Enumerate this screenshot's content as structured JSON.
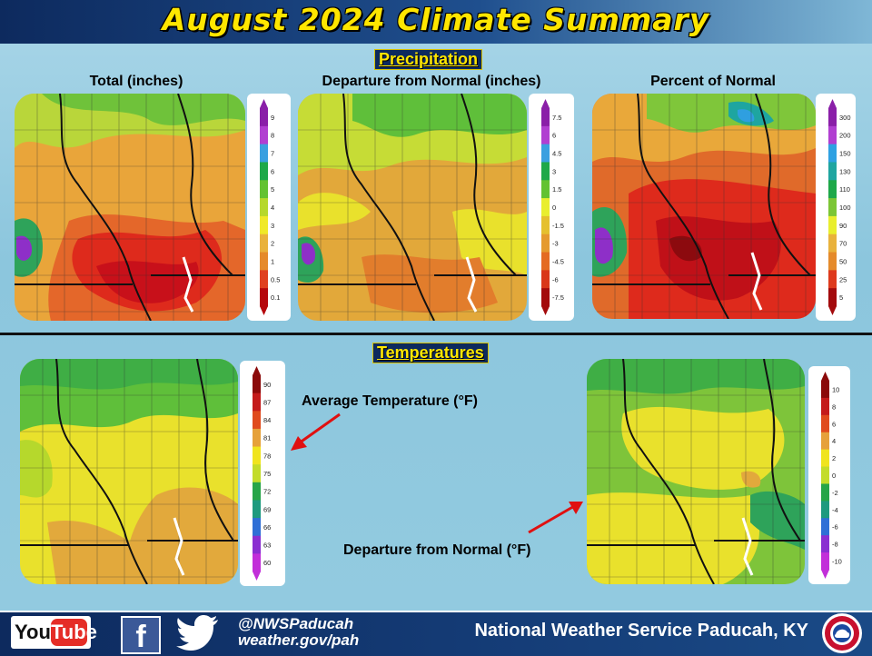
{
  "header": {
    "title": "August 2024 Climate Summary"
  },
  "precipitation": {
    "section_title": "Precipitation",
    "total": {
      "label": "Total (inches)",
      "legend": [
        "9",
        "8",
        "7",
        "6",
        "5",
        "4",
        "3",
        "2",
        "1",
        "0.5",
        "0.1"
      ],
      "legend_colors": [
        "#8a1fa8",
        "#b13fd1",
        "#3aa0e0",
        "#1ea849",
        "#63c232",
        "#b6d82c",
        "#f0e928",
        "#e9b23c",
        "#e58a2b",
        "#e0401f",
        "#b5070c"
      ]
    },
    "departure": {
      "label": "Departure from Normal (inches)",
      "legend": [
        "7.5",
        "6",
        "4.5",
        "3",
        "1.5",
        "0",
        "-1.5",
        "-3",
        "-4.5",
        "-6",
        "-7.5"
      ],
      "legend_colors": [
        "#8a1fa8",
        "#b13fd1",
        "#3aa0e0",
        "#1ea849",
        "#63c232",
        "#e9ee2e",
        "#e5c02e",
        "#e59a2e",
        "#e46b22",
        "#d9371a",
        "#a30a0c"
      ]
    },
    "percent": {
      "label": "Percent of Normal",
      "legend": [
        "300",
        "200",
        "150",
        "130",
        "110",
        "100",
        "90",
        "70",
        "50",
        "25",
        "5"
      ],
      "legend_colors": [
        "#8a1fa8",
        "#b13fd1",
        "#2ea1e2",
        "#1fa5a0",
        "#1ea849",
        "#7cc635",
        "#e9ee2e",
        "#e9b23c",
        "#e58a2b",
        "#de3a1d",
        "#a30a0c"
      ]
    }
  },
  "temperatures": {
    "section_title": "Temperatures",
    "average": {
      "annotation": "Average Temperature (°F)",
      "legend": [
        "90",
        "87",
        "84",
        "81",
        "78",
        "75",
        "72",
        "69",
        "66",
        "63",
        "60"
      ],
      "legend_colors": [
        "#8b0a0a",
        "#c41b1b",
        "#e04b1d",
        "#e6a13a",
        "#f0e41e",
        "#c3dc2a",
        "#27a548",
        "#1e9a7f",
        "#2f6fd6",
        "#8a2fd1",
        "#c22fd9"
      ]
    },
    "departure": {
      "annotation": "Departure from Normal (°F)",
      "legend": [
        "10",
        "8",
        "6",
        "4",
        "2",
        "0",
        "-2",
        "-4",
        "-6",
        "-8",
        "-10"
      ],
      "legend_colors": [
        "#8b0a0a",
        "#c41b1b",
        "#e04b1d",
        "#e6a13a",
        "#f0e41e",
        "#c3dc2a",
        "#27a548",
        "#1e9a7f",
        "#2f6fd6",
        "#8a2fd1",
        "#c22fd9"
      ]
    }
  },
  "footer": {
    "youtube_you": "You",
    "youtube_tube": "Tube",
    "facebook_glyph": "f",
    "handle": "@NWSPaducah",
    "website": "weather.gov/pah",
    "office": "National Weather Service Paducah, KY"
  }
}
